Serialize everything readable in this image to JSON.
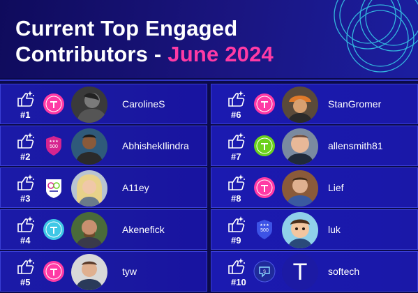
{
  "header": {
    "title_line1": "Current Top Engaged",
    "title_line2_prefix": "Contributors - ",
    "title_line2_accent": "June 2024"
  },
  "contributors": [
    {
      "rank": "#1",
      "name": "CarolineS",
      "badge": "titan-badge",
      "avatar": "photo"
    },
    {
      "rank": "#2",
      "name": "AbhishekIlindra",
      "badge": "500-shield-badge",
      "avatar": "photo"
    },
    {
      "rank": "#3",
      "name": "A11ey",
      "badge": "accessibility-badge",
      "avatar": "photo"
    },
    {
      "rank": "#4",
      "name": "Akenefick",
      "badge": "titan-badge",
      "avatar": "photo"
    },
    {
      "rank": "#5",
      "name": "tyw",
      "badge": "titan-badge",
      "avatar": "photo"
    },
    {
      "rank": "#6",
      "name": "StanGromer",
      "badge": "titan-badge",
      "avatar": "photo"
    },
    {
      "rank": "#7",
      "name": "allensmith81",
      "badge": "titan-badge",
      "avatar": "photo"
    },
    {
      "rank": "#8",
      "name": "Lief",
      "badge": "titan-badge",
      "avatar": "photo"
    },
    {
      "rank": "#9",
      "name": "luk",
      "badge": "500-shield-badge",
      "avatar": "cartoon"
    },
    {
      "rank": "#10",
      "name": "softech",
      "badge": "chat-badge",
      "avatar": "letter",
      "avatar_letter": "T"
    }
  ],
  "colors": {
    "accent": "#ff3aa5",
    "titan_pink": "#ff3aa5",
    "titan_green": "#6bd11d",
    "titan_cyan": "#3fc7e6"
  }
}
